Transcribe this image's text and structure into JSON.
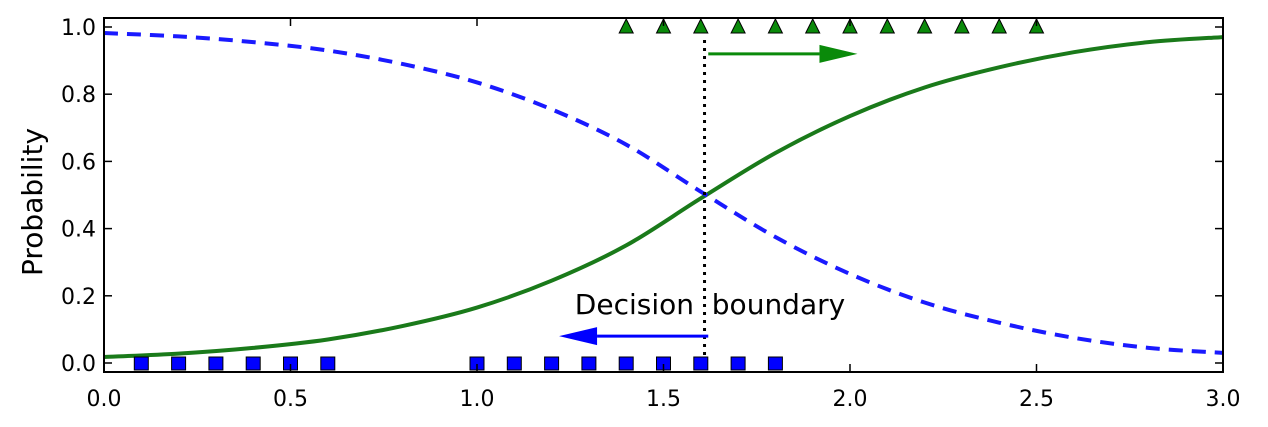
{
  "chart_data": {
    "type": "line",
    "title": "",
    "xlabel": "",
    "ylabel": "Probability",
    "xlim": [
      0.0,
      3.0
    ],
    "ylim": [
      0.0,
      1.0
    ],
    "grid": false,
    "xticks": [
      "0.0",
      "0.5",
      "1.0",
      "1.5",
      "2.0",
      "2.5",
      "3.0"
    ],
    "yticks": [
      "0.0",
      "0.2",
      "0.4",
      "0.6",
      "0.8",
      "1.0"
    ],
    "series": [
      {
        "style": "solid",
        "color": "#1a7a1a",
        "x": [
          0.0,
          0.2,
          0.4,
          0.6,
          0.8,
          1.0,
          1.2,
          1.4,
          1.6,
          1.8,
          2.0,
          2.2,
          2.4,
          2.6,
          2.8,
          3.0
        ],
        "y": [
          0.018,
          0.028,
          0.045,
          0.07,
          0.11,
          0.165,
          0.245,
          0.35,
          0.49,
          0.625,
          0.735,
          0.82,
          0.88,
          0.925,
          0.955,
          0.97
        ]
      },
      {
        "style": "dashed",
        "color": "#1a1aff",
        "x": [
          0.0,
          0.2,
          0.4,
          0.6,
          0.8,
          1.0,
          1.2,
          1.4,
          1.6,
          1.8,
          2.0,
          2.2,
          2.4,
          2.6,
          2.8,
          3.0
        ],
        "y": [
          0.982,
          0.972,
          0.955,
          0.93,
          0.89,
          0.835,
          0.755,
          0.65,
          0.51,
          0.375,
          0.265,
          0.18,
          0.12,
          0.075,
          0.045,
          0.03
        ]
      }
    ],
    "markers": {
      "squares": {
        "color": "#0000ff",
        "x": [
          0.1,
          0.2,
          0.3,
          0.4,
          0.5,
          0.6,
          1.0,
          1.1,
          1.2,
          1.3,
          1.4,
          1.5,
          1.6,
          1.7,
          1.8
        ],
        "y": 0.0
      },
      "triangles": {
        "color": "#0a8a0a",
        "x": [
          1.4,
          1.5,
          1.6,
          1.7,
          1.8,
          1.9,
          2.0,
          2.1,
          2.2,
          2.3,
          2.4,
          2.5
        ],
        "y": 1.0
      }
    },
    "decision_boundary": {
      "x": 1.61,
      "label": "Decision  boundary"
    },
    "arrows": [
      {
        "color": "#0a8a0a",
        "from": [
          1.62,
          0.92
        ],
        "to": [
          2.02,
          0.92
        ]
      },
      {
        "color": "#0000ff",
        "from": [
          1.62,
          0.08
        ],
        "to": [
          1.22,
          0.08
        ]
      }
    ]
  }
}
